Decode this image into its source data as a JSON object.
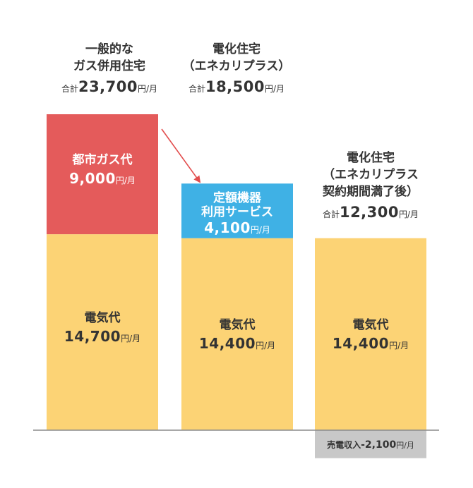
{
  "chart_data": {
    "type": "bar",
    "stacked": true,
    "unit": "円/月",
    "total_label": "合計",
    "categories": [
      {
        "name": "一般的な\nガス併用住宅",
        "total": "23,700"
      },
      {
        "name": "電化住宅\n（エネカリプラス）",
        "total": "18,500"
      },
      {
        "name": "電化住宅\n（エネカリプラス\n契約期間満了後）",
        "total": "12,300"
      }
    ],
    "series": [
      {
        "name": "電気代",
        "color": "#fcd375",
        "label_color": "#333333",
        "values": [
          14700,
          14400,
          14400
        ],
        "labels": [
          "14,700",
          "14,400",
          "14,400"
        ]
      },
      {
        "name": "都市ガス代",
        "color": "#e45b5b",
        "label_color": "#ffffff",
        "values": [
          9000,
          0,
          0
        ],
        "labels": [
          "9,000",
          "",
          ""
        ]
      },
      {
        "name": "定額機器\n利用サービス",
        "color": "#3fb1e5",
        "label_color": "#ffffff",
        "values": [
          0,
          4100,
          0
        ],
        "labels": [
          "",
          "4,100",
          ""
        ]
      }
    ],
    "sale": {
      "name": "売電収入",
      "value": -2100,
      "label": "-2,100",
      "color": "#c8c8c8",
      "category_index": 2
    },
    "arrow_color": "#e24d4d",
    "ylim": [
      0,
      23700
    ]
  }
}
